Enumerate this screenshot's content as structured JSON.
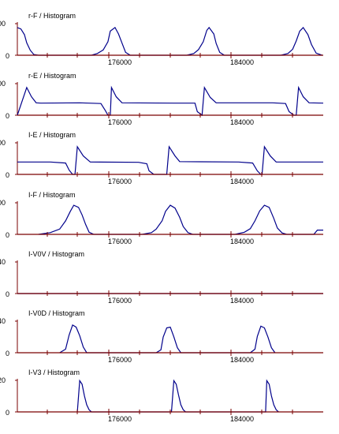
{
  "chart_data": [
    {
      "type": "line",
      "title": "r-F / Histogram",
      "y_ticks": [
        "00",
        "0"
      ],
      "x_ticks": [
        "176000",
        "184000"
      ],
      "series": [
        {
          "values": [
            [
              168200,
              0.78
            ],
            [
              168500,
              0.74
            ],
            [
              168800,
              0.58
            ],
            [
              169000,
              0.35
            ],
            [
              169300,
              0.14
            ],
            [
              169600,
              0.02
            ],
            [
              170000,
              0
            ],
            [
              174500,
              0
            ],
            [
              175000,
              0.05
            ],
            [
              175500,
              0.15
            ],
            [
              175900,
              0.38
            ],
            [
              176100,
              0.68
            ],
            [
              176500,
              0.78
            ],
            [
              176800,
              0.6
            ],
            [
              177100,
              0.34
            ],
            [
              177400,
              0.08
            ],
            [
              177800,
              0
            ],
            [
              182600,
              0
            ],
            [
              183200,
              0.05
            ],
            [
              183600,
              0.16
            ],
            [
              184000,
              0.38
            ],
            [
              184300,
              0.7
            ],
            [
              184500,
              0.78
            ],
            [
              184900,
              0.6
            ],
            [
              185100,
              0.33
            ],
            [
              185400,
              0.08
            ],
            [
              185800,
              0
            ],
            [
              190600,
              0
            ],
            [
              191200,
              0.05
            ],
            [
              191600,
              0.17
            ],
            [
              191900,
              0.4
            ],
            [
              192200,
              0.68
            ],
            [
              192500,
              0.78
            ],
            [
              192900,
              0.58
            ],
            [
              193200,
              0.3
            ],
            [
              193600,
              0.06
            ],
            [
              194100,
              0
            ]
          ]
        }
      ]
    },
    {
      "type": "line",
      "title": "r-E / Histogram",
      "y_ticks": [
        "00",
        "0"
      ],
      "x_ticks": [
        "176000",
        "184000"
      ],
      "series": [
        {
          "values": [
            [
              168200,
              0
            ],
            [
              169000,
              0.78
            ],
            [
              169400,
              0.52
            ],
            [
              169800,
              0.35
            ],
            [
              170200,
              0.34
            ],
            [
              173500,
              0.35
            ],
            [
              175300,
              0.33
            ],
            [
              175700,
              0.12
            ],
            [
              175900,
              0
            ],
            [
              176100,
              0
            ],
            [
              176200,
              0.78
            ],
            [
              176600,
              0.52
            ],
            [
              177100,
              0.35
            ],
            [
              181500,
              0.34
            ],
            [
              183300,
              0.34
            ],
            [
              183500,
              0.1
            ],
            [
              183900,
              0
            ],
            [
              184100,
              0.78
            ],
            [
              184600,
              0.5
            ],
            [
              185100,
              0.35
            ],
            [
              189900,
              0.35
            ],
            [
              191000,
              0.33
            ],
            [
              191300,
              0.1
            ],
            [
              191700,
              0
            ],
            [
              191900,
              0
            ],
            [
              192100,
              0.78
            ],
            [
              192500,
              0.52
            ],
            [
              193000,
              0.35
            ],
            [
              194200,
              0.34
            ]
          ]
        }
      ]
    },
    {
      "type": "line",
      "title": "I-E / Histogram",
      "y_ticks": [
        "00",
        "0"
      ],
      "x_ticks": [
        "176000",
        "184000"
      ],
      "series": [
        {
          "values": [
            [
              168200,
              0.35
            ],
            [
              171000,
              0.35
            ],
            [
              172300,
              0.32
            ],
            [
              172600,
              0.12
            ],
            [
              172900,
              0
            ],
            [
              173100,
              0
            ],
            [
              173300,
              0.78
            ],
            [
              173800,
              0.52
            ],
            [
              174400,
              0.35
            ],
            [
              178500,
              0.34
            ],
            [
              179200,
              0.3
            ],
            [
              179400,
              0.1
            ],
            [
              179800,
              0
            ],
            [
              180900,
              0
            ],
            [
              181100,
              0.78
            ],
            [
              181600,
              0.52
            ],
            [
              182000,
              0.36
            ],
            [
              187000,
              0.35
            ],
            [
              188200,
              0.32
            ],
            [
              188600,
              0.1
            ],
            [
              188900,
              0
            ],
            [
              189000,
              0
            ],
            [
              189200,
              0.78
            ],
            [
              189700,
              0.52
            ],
            [
              190200,
              0.35
            ],
            [
              194200,
              0.35
            ]
          ]
        }
      ]
    },
    {
      "type": "line",
      "title": "I-F / Histogram",
      "y_ticks": [
        "00",
        "0"
      ],
      "x_ticks": [
        "176000",
        "184000"
      ],
      "series": [
        {
          "values": [
            [
              170000,
              0
            ],
            [
              171000,
              0.05
            ],
            [
              171800,
              0.15
            ],
            [
              172300,
              0.38
            ],
            [
              172700,
              0.65
            ],
            [
              173000,
              0.82
            ],
            [
              173400,
              0.76
            ],
            [
              173700,
              0.55
            ],
            [
              174000,
              0.28
            ],
            [
              174300,
              0.06
            ],
            [
              174700,
              0
            ],
            [
              178800,
              0
            ],
            [
              179600,
              0.05
            ],
            [
              180000,
              0.15
            ],
            [
              180500,
              0.38
            ],
            [
              180800,
              0.65
            ],
            [
              181200,
              0.82
            ],
            [
              181600,
              0.74
            ],
            [
              182000,
              0.48
            ],
            [
              182300,
              0.22
            ],
            [
              182700,
              0.05
            ],
            [
              183100,
              0
            ],
            [
              186700,
              0
            ],
            [
              187500,
              0.06
            ],
            [
              188000,
              0.16
            ],
            [
              188400,
              0.38
            ],
            [
              188800,
              0.66
            ],
            [
              189200,
              0.82
            ],
            [
              189600,
              0.76
            ],
            [
              190000,
              0.45
            ],
            [
              190300,
              0.18
            ],
            [
              190700,
              0.04
            ],
            [
              191100,
              0
            ],
            [
              193400,
              0
            ],
            [
              193700,
              0.12
            ],
            [
              194200,
              0.12
            ]
          ]
        }
      ]
    },
    {
      "type": "line",
      "title": "I-V0V / Histogram",
      "y_ticks": [
        "40",
        "0"
      ],
      "x_ticks": [
        "176000",
        "184000"
      ],
      "series": [
        {
          "values": [
            [
              168200,
              0
            ],
            [
              194200,
              0
            ]
          ]
        }
      ]
    },
    {
      "type": "line",
      "title": "I-V0D / Histogram",
      "y_ticks": [
        "40",
        "0"
      ],
      "x_ticks": [
        "176000",
        "184000"
      ],
      "series": [
        {
          "values": [
            [
              171800,
              0
            ],
            [
              172300,
              0.1
            ],
            [
              172600,
              0.5
            ],
            [
              172900,
              0.78
            ],
            [
              173200,
              0.72
            ],
            [
              173500,
              0.48
            ],
            [
              173800,
              0.16
            ],
            [
              174100,
              0
            ],
            [
              180000,
              0
            ],
            [
              180400,
              0.08
            ],
            [
              180600,
              0.44
            ],
            [
              180900,
              0.7
            ],
            [
              181200,
              0.72
            ],
            [
              181500,
              0.45
            ],
            [
              181800,
              0.14
            ],
            [
              182100,
              0
            ],
            [
              188000,
              0
            ],
            [
              188400,
              0.1
            ],
            [
              188600,
              0.46
            ],
            [
              188900,
              0.75
            ],
            [
              189200,
              0.7
            ],
            [
              189500,
              0.44
            ],
            [
              189800,
              0.14
            ],
            [
              190100,
              0
            ]
          ]
        }
      ]
    },
    {
      "type": "line",
      "title": "I-V3 / Histogram",
      "y_ticks": [
        "20",
        "0"
      ],
      "x_ticks": [
        "176000",
        "184000"
      ],
      "series": [
        {
          "values": [
            [
              173300,
              0
            ],
            [
              173500,
              0.88
            ],
            [
              173700,
              0.78
            ],
            [
              173900,
              0.45
            ],
            [
              174100,
              0.2
            ],
            [
              174300,
              0.06
            ],
            [
              174500,
              0
            ],
            [
              181300,
              0
            ],
            [
              181500,
              0.88
            ],
            [
              181700,
              0.78
            ],
            [
              181900,
              0.48
            ],
            [
              182100,
              0.2
            ],
            [
              182300,
              0.06
            ],
            [
              182500,
              0
            ],
            [
              189300,
              0
            ],
            [
              189400,
              0.88
            ],
            [
              189600,
              0.78
            ],
            [
              189800,
              0.45
            ],
            [
              190000,
              0.2
            ],
            [
              190200,
              0.06
            ],
            [
              190400,
              0
            ]
          ]
        }
      ]
    }
  ]
}
